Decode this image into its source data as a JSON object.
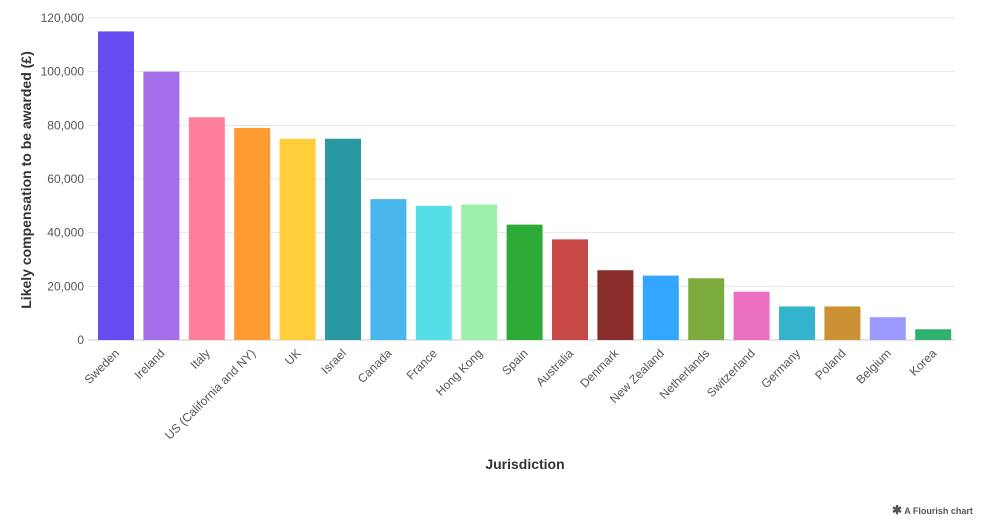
{
  "chart_data": {
    "type": "bar",
    "title": "",
    "xlabel": "Jurisdiction",
    "ylabel": "Likely compensation to be awarded (£)",
    "ylim": [
      0,
      120000
    ],
    "yticks": [
      0,
      20000,
      40000,
      60000,
      80000,
      100000,
      120000
    ],
    "ytick_labels": [
      "0",
      "20,000",
      "40,000",
      "60,000",
      "80,000",
      "100,000",
      "120,000"
    ],
    "grid": true,
    "categories": [
      "Sweden",
      "Ireland",
      "Italy",
      "US (California and NY)",
      "UK",
      "Israel",
      "Canada",
      "France",
      "Hong Kong",
      "Spain",
      "Australia",
      "Denmark",
      "New Zealand",
      "Netherlands",
      "Switzerland",
      "Germany",
      "Poland",
      "Belgium",
      "Korea"
    ],
    "values": [
      115000,
      100000,
      83000,
      79000,
      75000,
      75000,
      52500,
      50000,
      50500,
      43000,
      37500,
      26000,
      24000,
      23000,
      18000,
      12500,
      12500,
      8500,
      4000
    ],
    "colors": [
      "#644cee",
      "#a46ee9",
      "#ff7e9a",
      "#ff9b32",
      "#ffce38",
      "#2a98a2",
      "#4ab6ee",
      "#54dfe8",
      "#9eefaa",
      "#2eab37",
      "#c84747",
      "#8a2d2d",
      "#33a7ff",
      "#7aab3c",
      "#eb70c3",
      "#33b4cc",
      "#cb9132",
      "#9c9aff",
      "#2eb06e"
    ]
  },
  "footer": {
    "credit": "A Flourish chart",
    "credit_icon": "flourish-asterisk-icon"
  }
}
